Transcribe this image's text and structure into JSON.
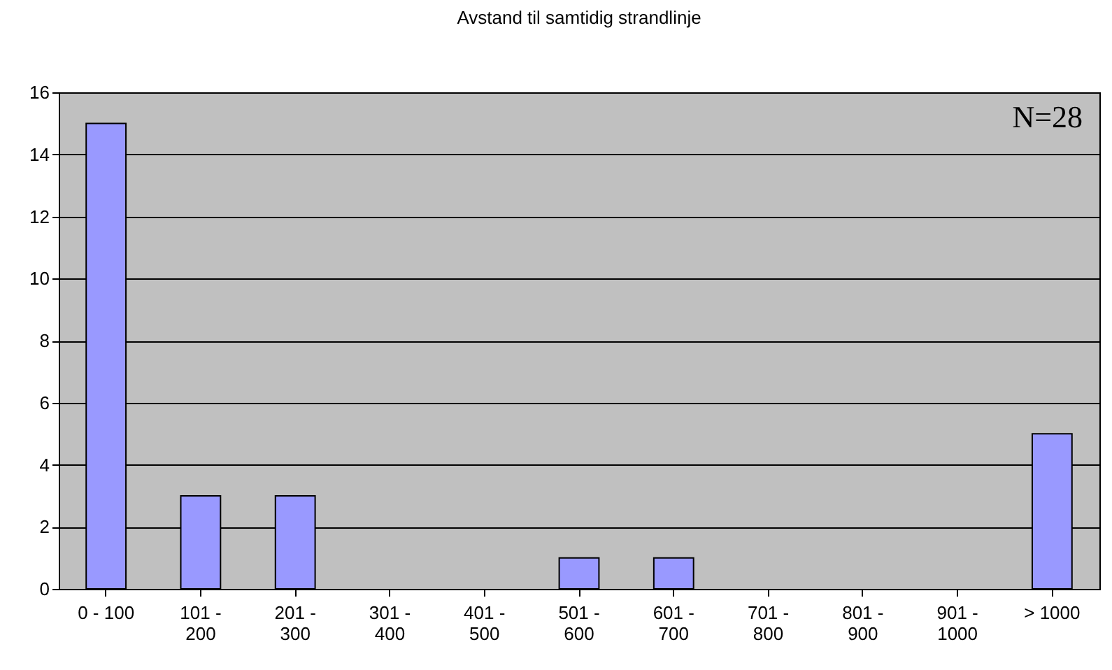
{
  "chart_data": {
    "type": "bar",
    "title": "Avstand til samtidig strandlinje",
    "categories": [
      "0 - 100",
      "101 - 200",
      "201 - 300",
      "301 - 400",
      "401 - 500",
      "501 - 600",
      "601 - 700",
      "701 - 800",
      "801 - 900",
      "901 - 1000",
      "> 1000"
    ],
    "values": [
      15,
      3,
      3,
      0,
      0,
      1,
      1,
      0,
      0,
      0,
      5
    ],
    "color": "#9999ff",
    "ylim": [
      0,
      16
    ],
    "yticks": [
      0,
      2,
      4,
      6,
      8,
      10,
      12,
      14,
      16
    ],
    "grid": "y",
    "annotations": [
      "N=28"
    ]
  }
}
